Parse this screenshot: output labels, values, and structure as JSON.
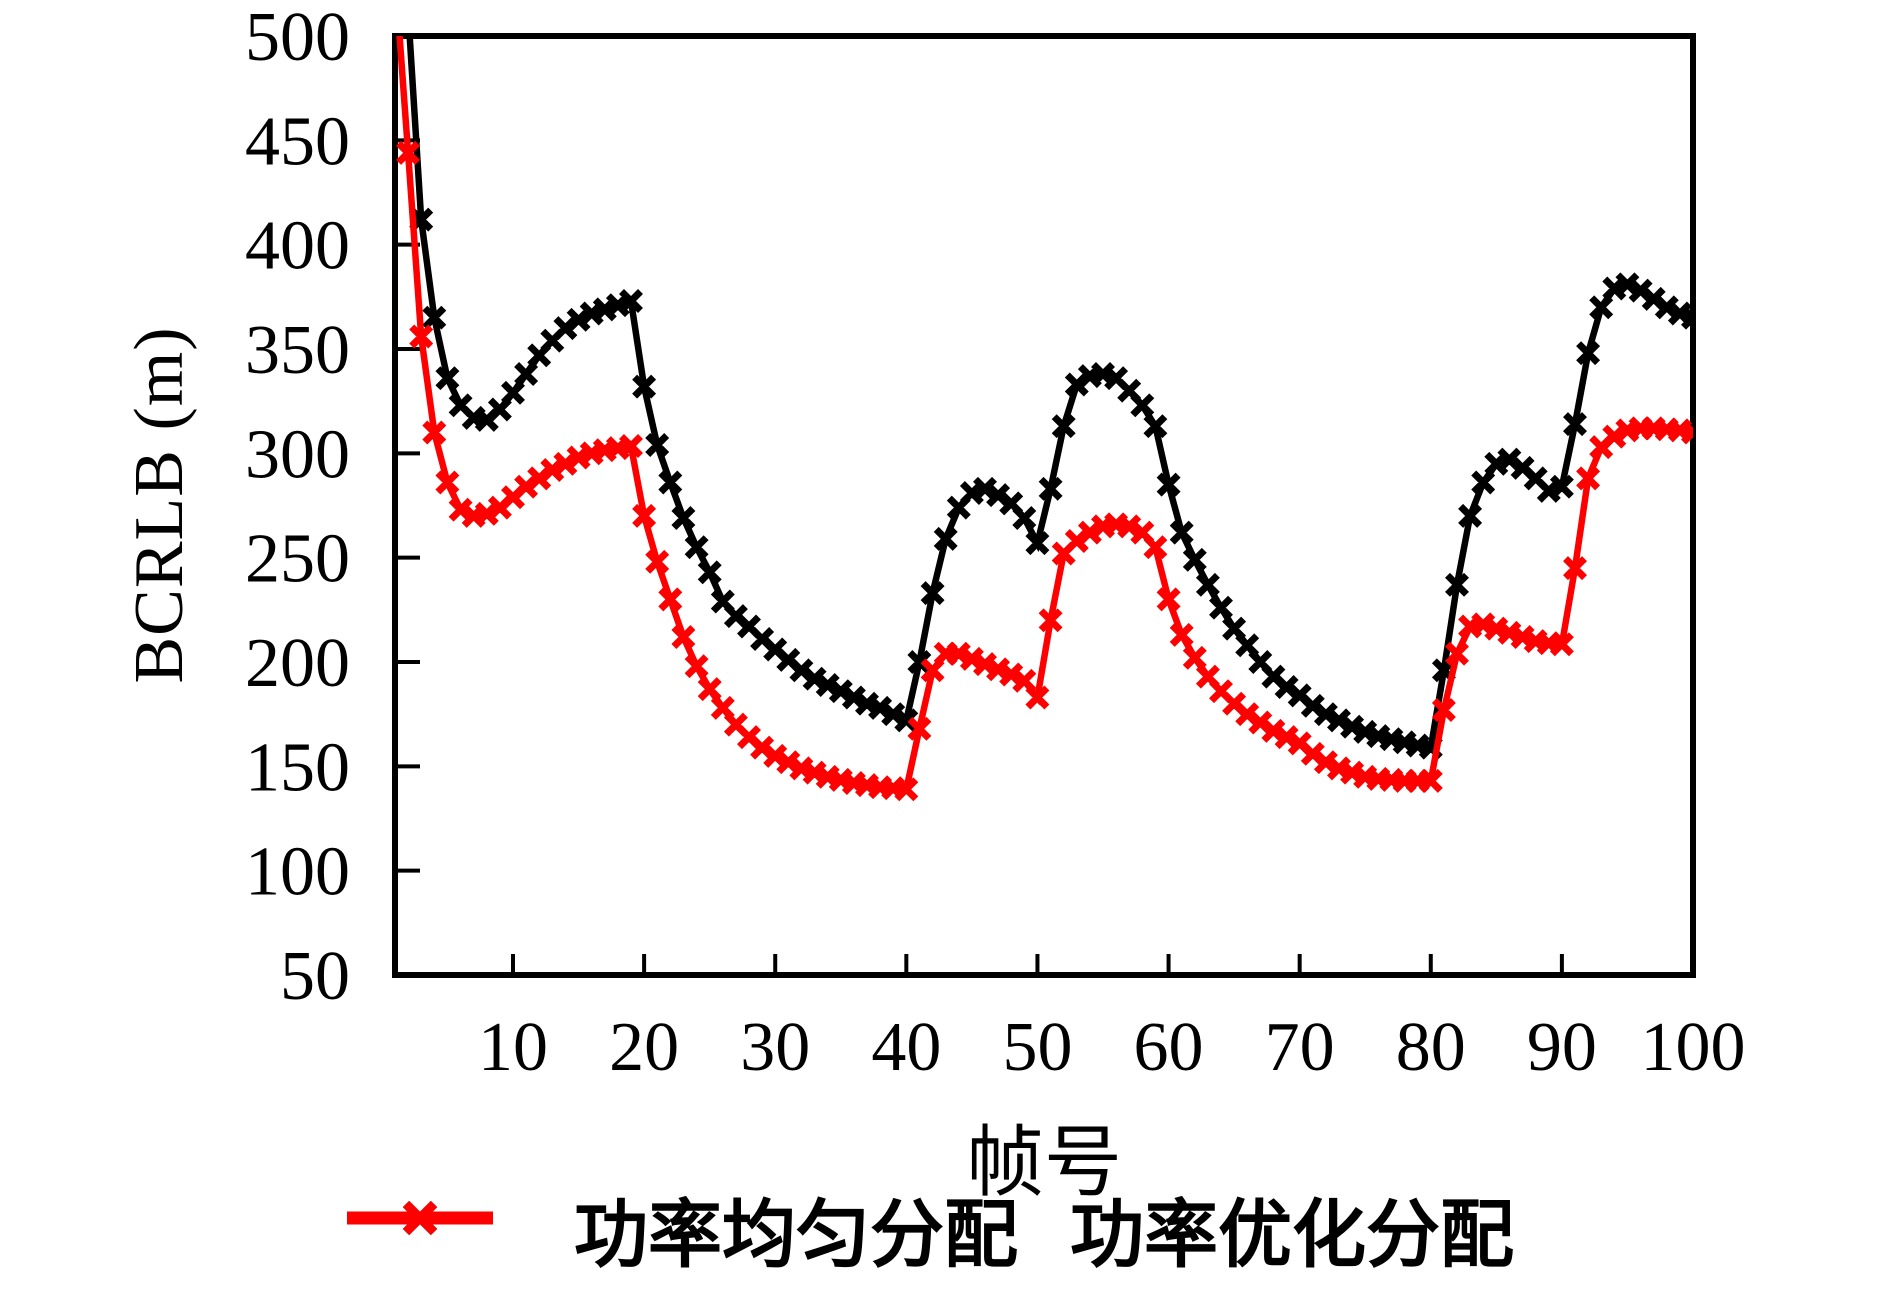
{
  "figure": {
    "background": "#ffffff",
    "axis_color": "#000000",
    "frame": "full-box with inward ticks on left and bottom"
  },
  "chart_data": {
    "type": "line",
    "title": "",
    "xlabel": "帧号",
    "ylabel": "BCRLB (m)",
    "grid": false,
    "legend_position": "bottom-center",
    "xlim": [
      1,
      100
    ],
    "ylim": [
      50,
      500
    ],
    "x_ticks": [
      10,
      20,
      30,
      40,
      50,
      60,
      70,
      80,
      90,
      100
    ],
    "y_ticks": [
      50,
      100,
      150,
      200,
      250,
      300,
      350,
      400,
      450,
      500
    ],
    "x_frames": {
      "from": 1,
      "to": 100,
      "step": 1
    },
    "clip_note": "series values above 500 are clipped by the plot top edge",
    "series": [
      {
        "name": "功率均匀分配",
        "color": "#000000",
        "marker": "x",
        "values": [
          650,
          512,
          412,
          365,
          336,
          323,
          317,
          316,
          321,
          329,
          338,
          347,
          354,
          360,
          364,
          367,
          369,
          371,
          373,
          332,
          304,
          286,
          269,
          255,
          243,
          229,
          222,
          217,
          211,
          206,
          201,
          196,
          192,
          189,
          186,
          183,
          180,
          178,
          175,
          172,
          200,
          233,
          259,
          274,
          281,
          283,
          280,
          276,
          269,
          257,
          283,
          313,
          333,
          337,
          338,
          336,
          330,
          323,
          313,
          285,
          262,
          249,
          237,
          226,
          216,
          208,
          200,
          193,
          188,
          184,
          179,
          175,
          172,
          169,
          166.5,
          164.5,
          163,
          161.5,
          160,
          159,
          196,
          237,
          270,
          286,
          295,
          297,
          293,
          288,
          282,
          284,
          314,
          348,
          370,
          379,
          381,
          378,
          374,
          370,
          367,
          365
        ]
      },
      {
        "name": "功率优化分配",
        "color": "#fe0000",
        "marker": "x",
        "values": [
          530,
          444,
          356,
          310,
          286,
          273,
          270,
          271,
          274,
          279,
          284,
          288,
          292,
          295,
          298,
          300,
          301.5,
          302.5,
          303.5,
          270,
          248,
          230,
          212,
          198,
          187,
          178,
          170,
          164,
          159,
          155,
          152,
          149,
          147,
          145,
          143.5,
          142,
          141,
          140,
          139.5,
          139,
          168,
          196,
          204,
          204,
          201.5,
          199,
          196.5,
          194,
          191,
          183,
          220,
          252,
          258,
          262,
          265,
          266,
          265,
          262,
          255,
          230,
          213,
          202,
          193,
          186,
          180,
          175,
          171,
          167,
          164,
          161,
          156,
          152,
          149,
          147,
          145,
          144,
          143.5,
          143,
          143,
          143,
          177,
          204,
          217,
          218,
          216,
          214,
          212,
          210,
          209,
          208.5,
          245,
          288,
          303,
          308,
          311,
          312,
          312,
          311.5,
          311,
          310
        ]
      }
    ]
  }
}
